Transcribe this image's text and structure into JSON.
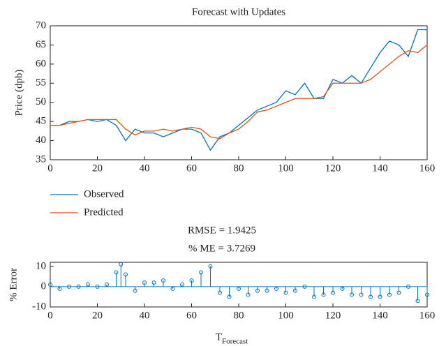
{
  "chart_data": [
    {
      "type": "line",
      "title": "Forecast with Updates",
      "ylabel": "Price (dpb)",
      "x": [
        0,
        4,
        8,
        12,
        16,
        20,
        24,
        28,
        32,
        36,
        40,
        44,
        48,
        52,
        56,
        60,
        64,
        68,
        72,
        76,
        80,
        84,
        88,
        92,
        96,
        100,
        104,
        108,
        112,
        116,
        120,
        124,
        128,
        132,
        136,
        140,
        144,
        148,
        152,
        156,
        160
      ],
      "series": [
        {
          "name": "Observed",
          "color": "#0072bd",
          "values": [
            44,
            44,
            45,
            45,
            45.5,
            45,
            45.5,
            44,
            40,
            43,
            42,
            42,
            41,
            42,
            43,
            43,
            42,
            37.5,
            41,
            42,
            44,
            46,
            48,
            49,
            50,
            53,
            52,
            55,
            51,
            51,
            56,
            55,
            57,
            55,
            59,
            63,
            66,
            65,
            62,
            69,
            69
          ]
        },
        {
          "name": "Predicted",
          "color": "#d95319",
          "values": [
            44,
            44,
            44.5,
            45,
            45.5,
            45.5,
            45.5,
            45.5,
            43,
            41.5,
            42.5,
            42.5,
            43,
            42.5,
            43,
            43.5,
            43,
            41,
            40.5,
            42,
            43,
            45,
            47.5,
            48,
            49,
            50,
            51,
            51,
            51,
            51.5,
            55,
            55,
            55,
            55,
            56,
            58,
            60,
            62,
            63.5,
            63,
            65
          ]
        }
      ],
      "xlim": [
        0,
        160
      ],
      "xticks": [
        0,
        20,
        40,
        60,
        80,
        100,
        120,
        140,
        160
      ],
      "ylim": [
        35,
        70
      ],
      "yticks": [
        35,
        40,
        45,
        50,
        55,
        60,
        65,
        70
      ],
      "annotations": [
        "RMSE = 1.9425",
        "% ME = 3.7269"
      ]
    },
    {
      "type": "stem",
      "ylabel": "% Error",
      "xlabel": "T",
      "xlabel_sub": "Forecast",
      "color": "#0072bd",
      "x": [
        0,
        4,
        8,
        12,
        16,
        20,
        24,
        28,
        30,
        32,
        36,
        40,
        44,
        48,
        52,
        56,
        60,
        64,
        68,
        72,
        76,
        80,
        84,
        88,
        92,
        96,
        100,
        104,
        108,
        112,
        116,
        120,
        124,
        128,
        132,
        136,
        140,
        144,
        148,
        152,
        156,
        160
      ],
      "values": [
        1,
        -1,
        0,
        0,
        1,
        0,
        1,
        7,
        11,
        6,
        -2,
        2,
        2,
        3,
        -1,
        1,
        3,
        7,
        10,
        -3,
        -5,
        -1,
        -4,
        -2,
        -2,
        -1,
        -3,
        -2,
        0,
        -5,
        -4,
        -3,
        -1,
        -4,
        -4,
        -5,
        -5,
        -4,
        -3,
        0,
        -7,
        -4
      ],
      "xlim": [
        0,
        160
      ],
      "xticks": [
        0,
        20,
        40,
        60,
        80,
        100,
        120,
        140,
        160
      ],
      "ylim": [
        -10,
        12
      ],
      "yticks": [
        -10,
        0,
        10
      ]
    }
  ]
}
